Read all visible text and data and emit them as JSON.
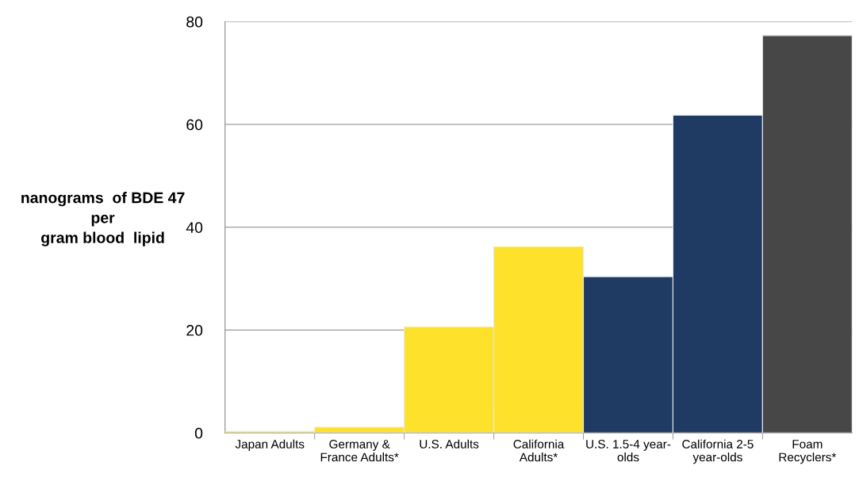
{
  "chart_data": {
    "type": "bar",
    "ylabel": "nanograms  of BDE 47\nper\ngram blood  lipid",
    "categories": [
      "Japan Adults",
      "Germany &\nFrance Adults*",
      "U.S. Adults",
      "California\nAdults*",
      "U.S. 1.5-4 year-\nolds",
      "California 2-5\nyear-olds",
      "Foam\nRecyclers*"
    ],
    "values": [
      0.3,
      1.1,
      20.6,
      36.2,
      30.4,
      61.8,
      77.3
    ],
    "colors": [
      "#fde12a",
      "#fde12a",
      "#fde12a",
      "#fde12a",
      "#1f3a63",
      "#1f3a63",
      "#474747"
    ],
    "ylim": [
      0,
      80
    ],
    "yticks": [
      0,
      20,
      40,
      60,
      80
    ],
    "grid": "y"
  }
}
